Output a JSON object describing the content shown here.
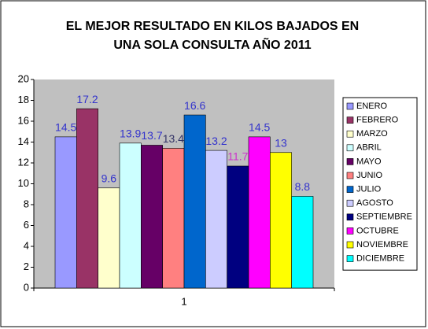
{
  "chart_data": {
    "type": "bar",
    "title": [
      "EL MEJOR RESULTADO EN KILOS BAJADOS EN",
      "UNA SOLA CONSULTA AÑO 2011"
    ],
    "categories": [
      "1"
    ],
    "series": [
      {
        "name": "ENERO",
        "color": "#9999ff",
        "label_color": "#3333cc",
        "values": [
          14.5
        ]
      },
      {
        "name": "FEBRERO",
        "color": "#993366",
        "label_color": "#3333cc",
        "values": [
          17.2
        ]
      },
      {
        "name": "MARZO",
        "color": "#ffffcc",
        "label_color": "#3333cc",
        "values": [
          9.6
        ]
      },
      {
        "name": "ABRIL",
        "color": "#ccffff",
        "label_color": "#3333cc",
        "values": [
          13.9
        ]
      },
      {
        "name": "MAYO",
        "color": "#660066",
        "label_color": "#3333cc",
        "values": [
          13.7
        ]
      },
      {
        "name": "JUNIO",
        "color": "#ff8080",
        "label_color": "#333366",
        "values": [
          13.4
        ]
      },
      {
        "name": "JULIO",
        "color": "#0066cc",
        "label_color": "#3333cc",
        "values": [
          16.6
        ]
      },
      {
        "name": "AGOSTO",
        "color": "#ccccff",
        "label_color": "#3333cc",
        "values": [
          13.2
        ]
      },
      {
        "name": "SEPTIEMBRE",
        "color": "#000080",
        "label_color": "#cc33cc",
        "values": [
          11.7
        ]
      },
      {
        "name": "OCTUBRE",
        "color": "#ff00ff",
        "label_color": "#3333cc",
        "values": [
          14.5
        ]
      },
      {
        "name": "NOVIEMBRE",
        "color": "#ffff00",
        "label_color": "#3333cc",
        "values": [
          13
        ]
      },
      {
        "name": "DICIEMBRE",
        "color": "#00ffff",
        "label_color": "#3333cc",
        "values": [
          8.8
        ]
      }
    ],
    "ylim": [
      0,
      20
    ],
    "yticks": [
      0,
      2,
      4,
      6,
      8,
      10,
      12,
      14,
      16,
      18,
      20
    ],
    "plot_background": "#c0c0c0",
    "legend": "right"
  }
}
